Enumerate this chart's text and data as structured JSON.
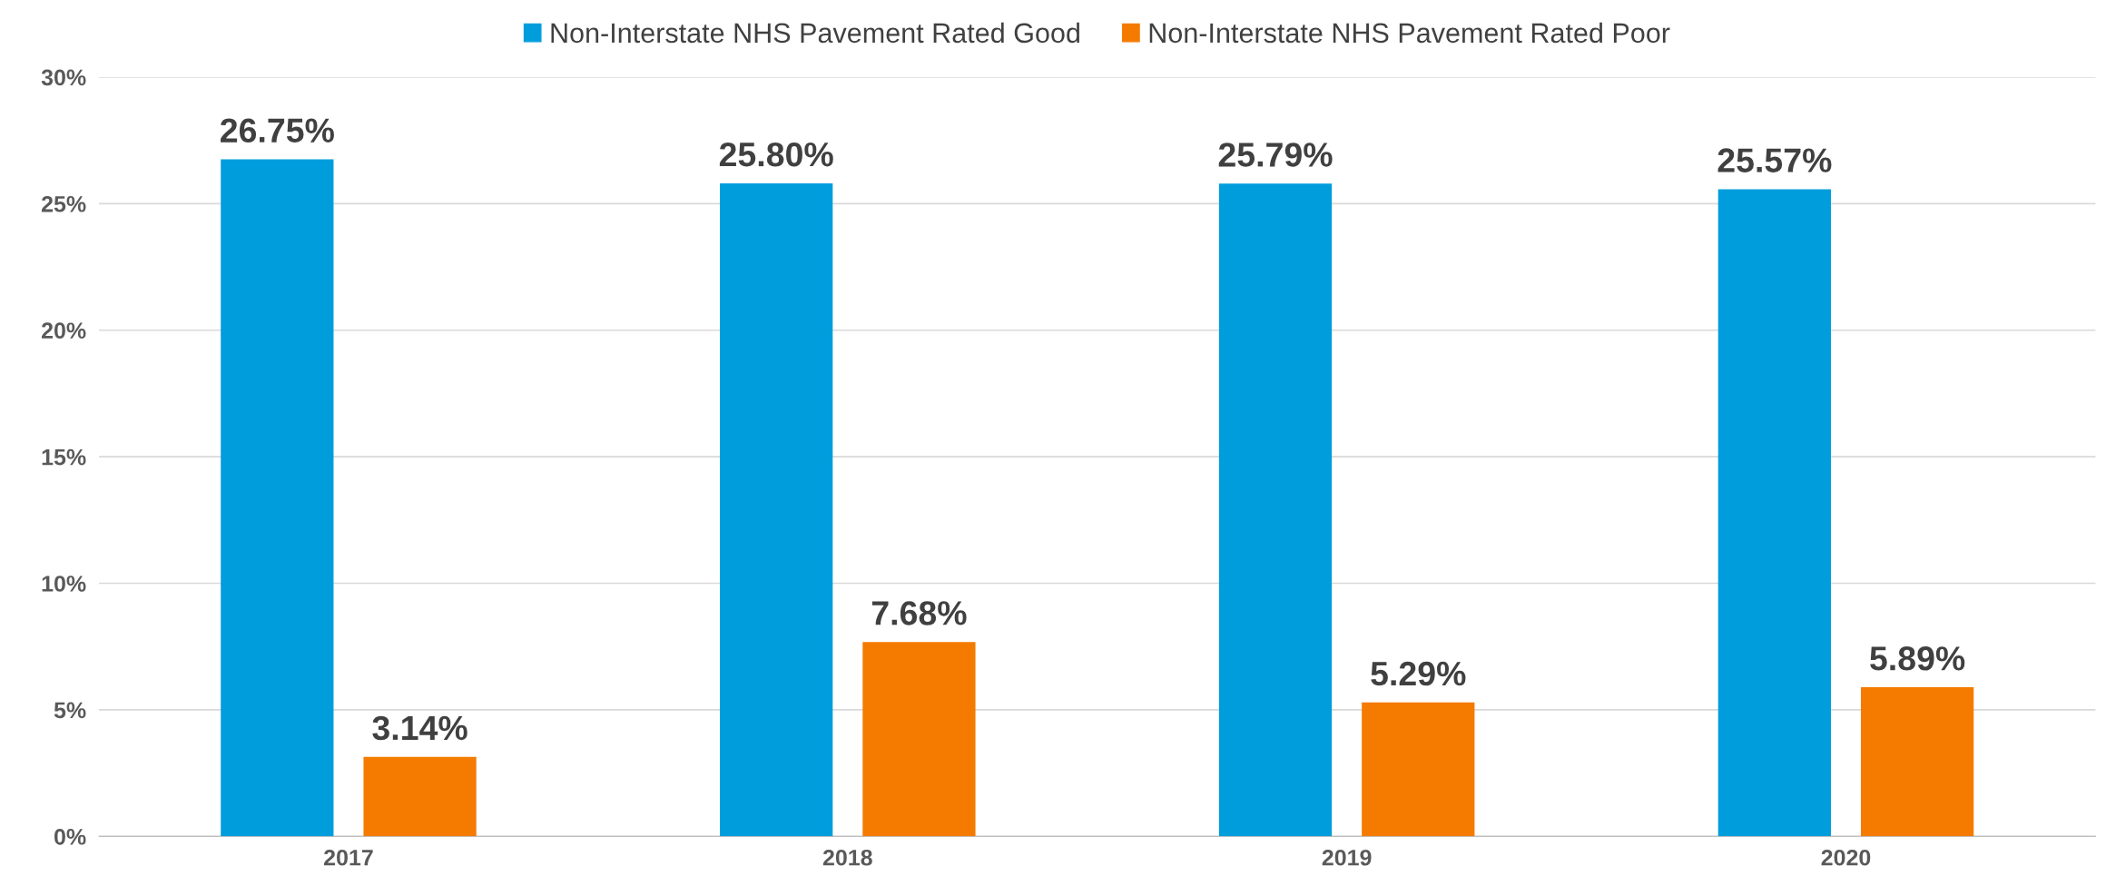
{
  "chart_data": {
    "type": "bar",
    "categories": [
      "2017",
      "2018",
      "2019",
      "2020"
    ],
    "series": [
      {
        "name": "Non-Interstate NHS Pavement Rated Good",
        "color": "#009ddc",
        "values": [
          26.75,
          25.8,
          25.79,
          25.57
        ],
        "value_labels": [
          "26.75%",
          "25.80%",
          "25.79%",
          "25.57%"
        ]
      },
      {
        "name": "Non-Interstate NHS Pavement Rated Poor",
        "color": "#f47b00",
        "values": [
          3.14,
          7.68,
          5.29,
          5.89
        ],
        "value_labels": [
          "3.14%",
          "7.68%",
          "5.29%",
          "5.89%"
        ]
      }
    ],
    "ylim": [
      0,
      30
    ],
    "yticks": [
      {
        "value": 0,
        "label": "0%"
      },
      {
        "value": 5,
        "label": "5%"
      },
      {
        "value": 10,
        "label": "10%"
      },
      {
        "value": 15,
        "label": "15%"
      },
      {
        "value": 20,
        "label": "20%"
      },
      {
        "value": 25,
        "label": "25%"
      },
      {
        "value": 30,
        "label": "30%"
      }
    ],
    "grid": "y",
    "legend": "top"
  }
}
